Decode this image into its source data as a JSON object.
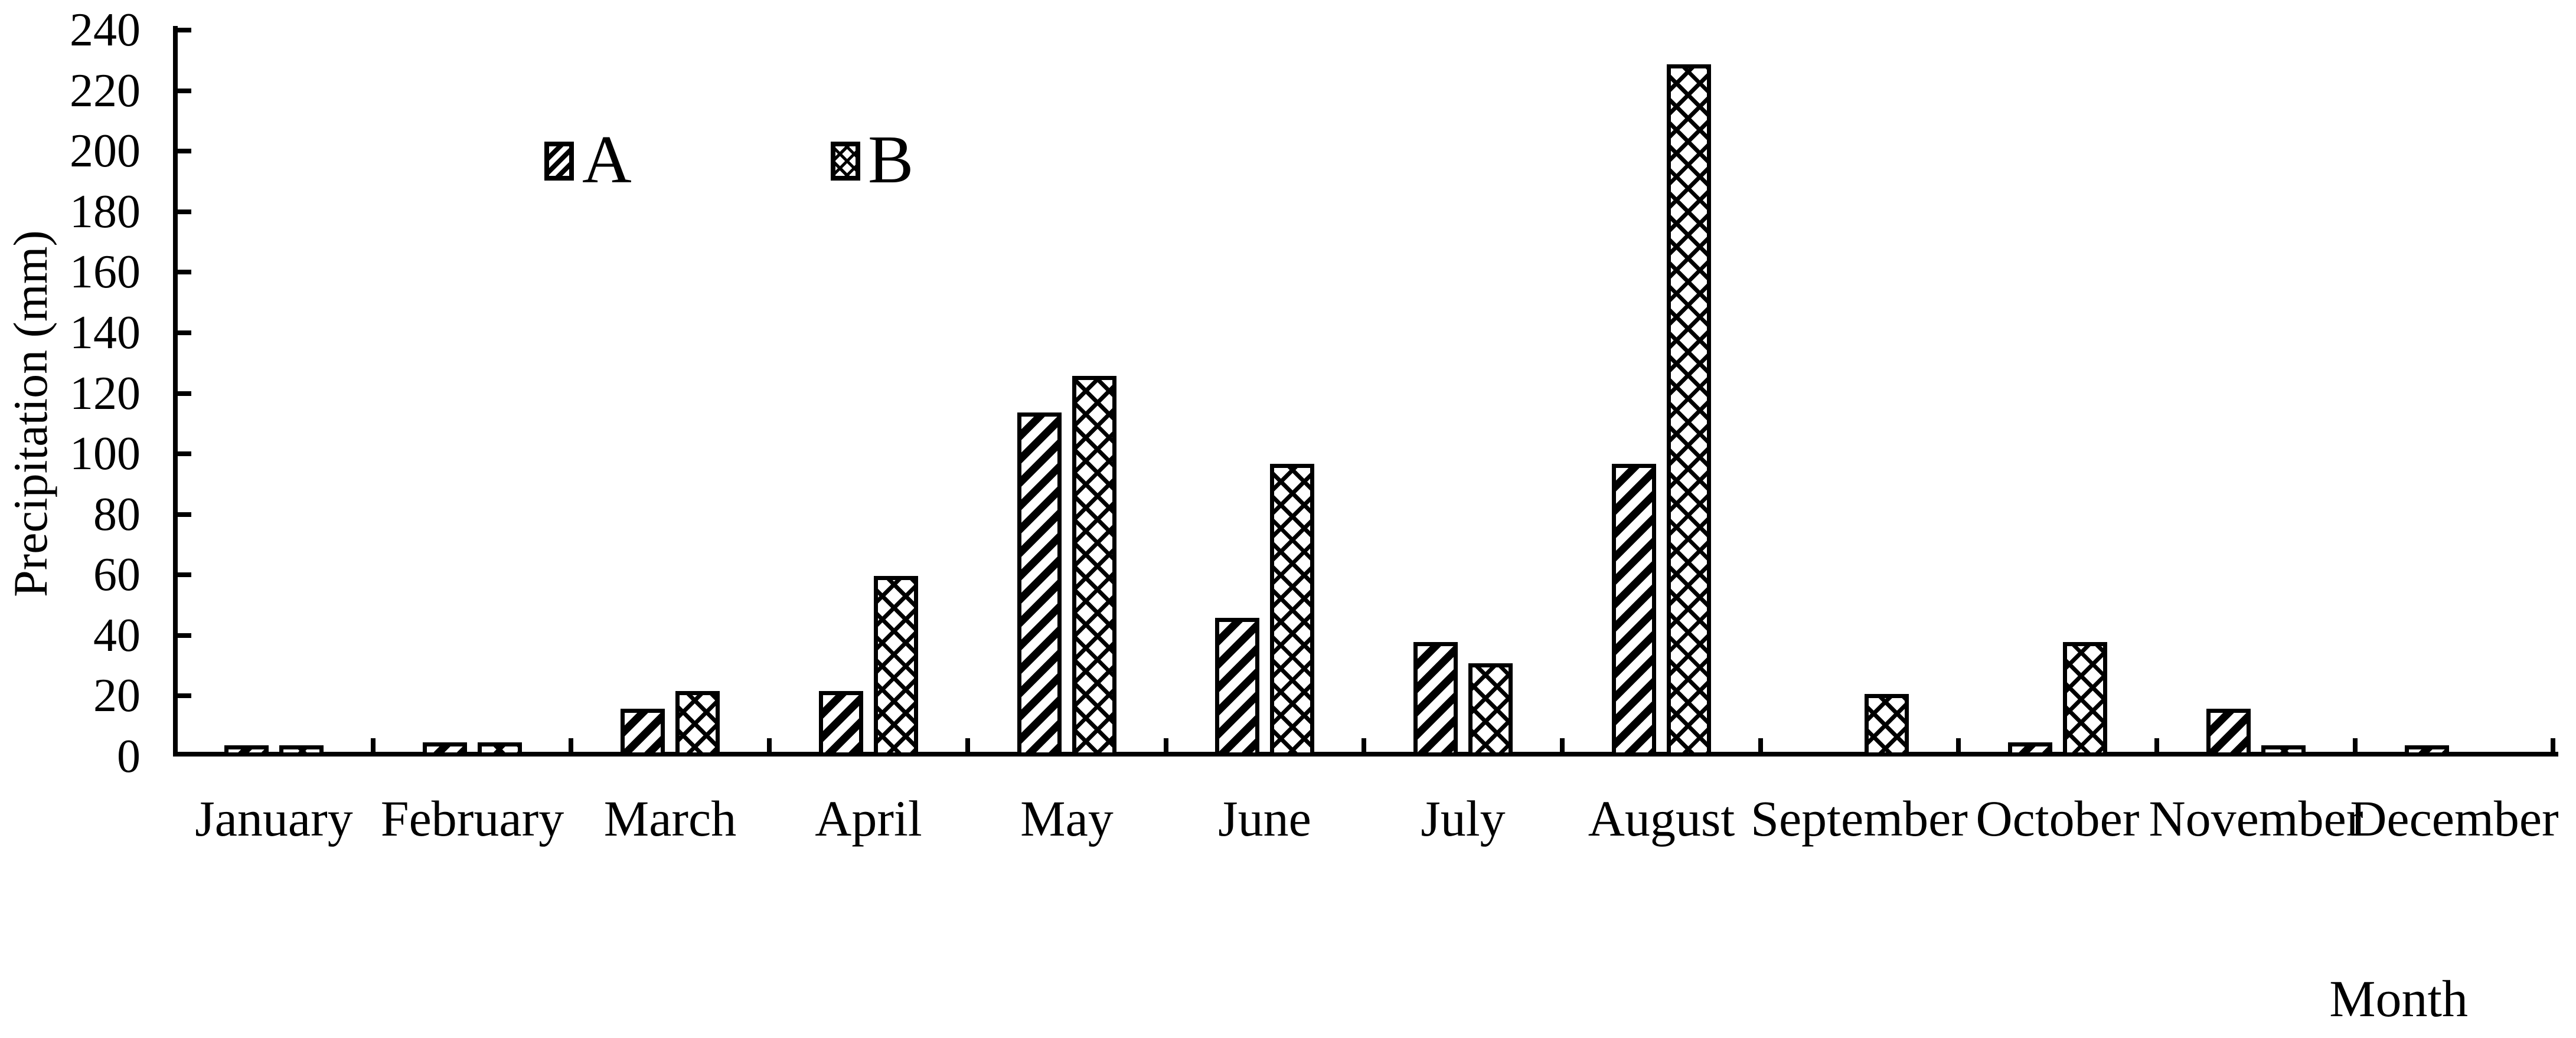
{
  "chart_data": {
    "type": "bar",
    "title": "",
    "xlabel": "Month",
    "ylabel": "Precipitation (mm)",
    "categories": [
      "January",
      "February",
      "March",
      "April",
      "May",
      "June",
      "July",
      "August",
      "September",
      "October",
      "November",
      "December"
    ],
    "series": [
      {
        "name": "A",
        "pattern": "diagonal-stripes",
        "values": [
          1,
          2,
          13,
          19,
          111,
          43,
          35,
          94,
          0,
          2,
          13,
          1
        ]
      },
      {
        "name": "B",
        "pattern": "dotted-crosshatch",
        "values": [
          1,
          2,
          19,
          57,
          123,
          94,
          28,
          226,
          18,
          35,
          1,
          0
        ]
      }
    ],
    "ylim": [
      0,
      240
    ],
    "ytick_interval": 20,
    "grid": false,
    "legend_position": "top-left-inside",
    "colors": {
      "foreground": "#000000",
      "background": "#ffffff"
    }
  }
}
